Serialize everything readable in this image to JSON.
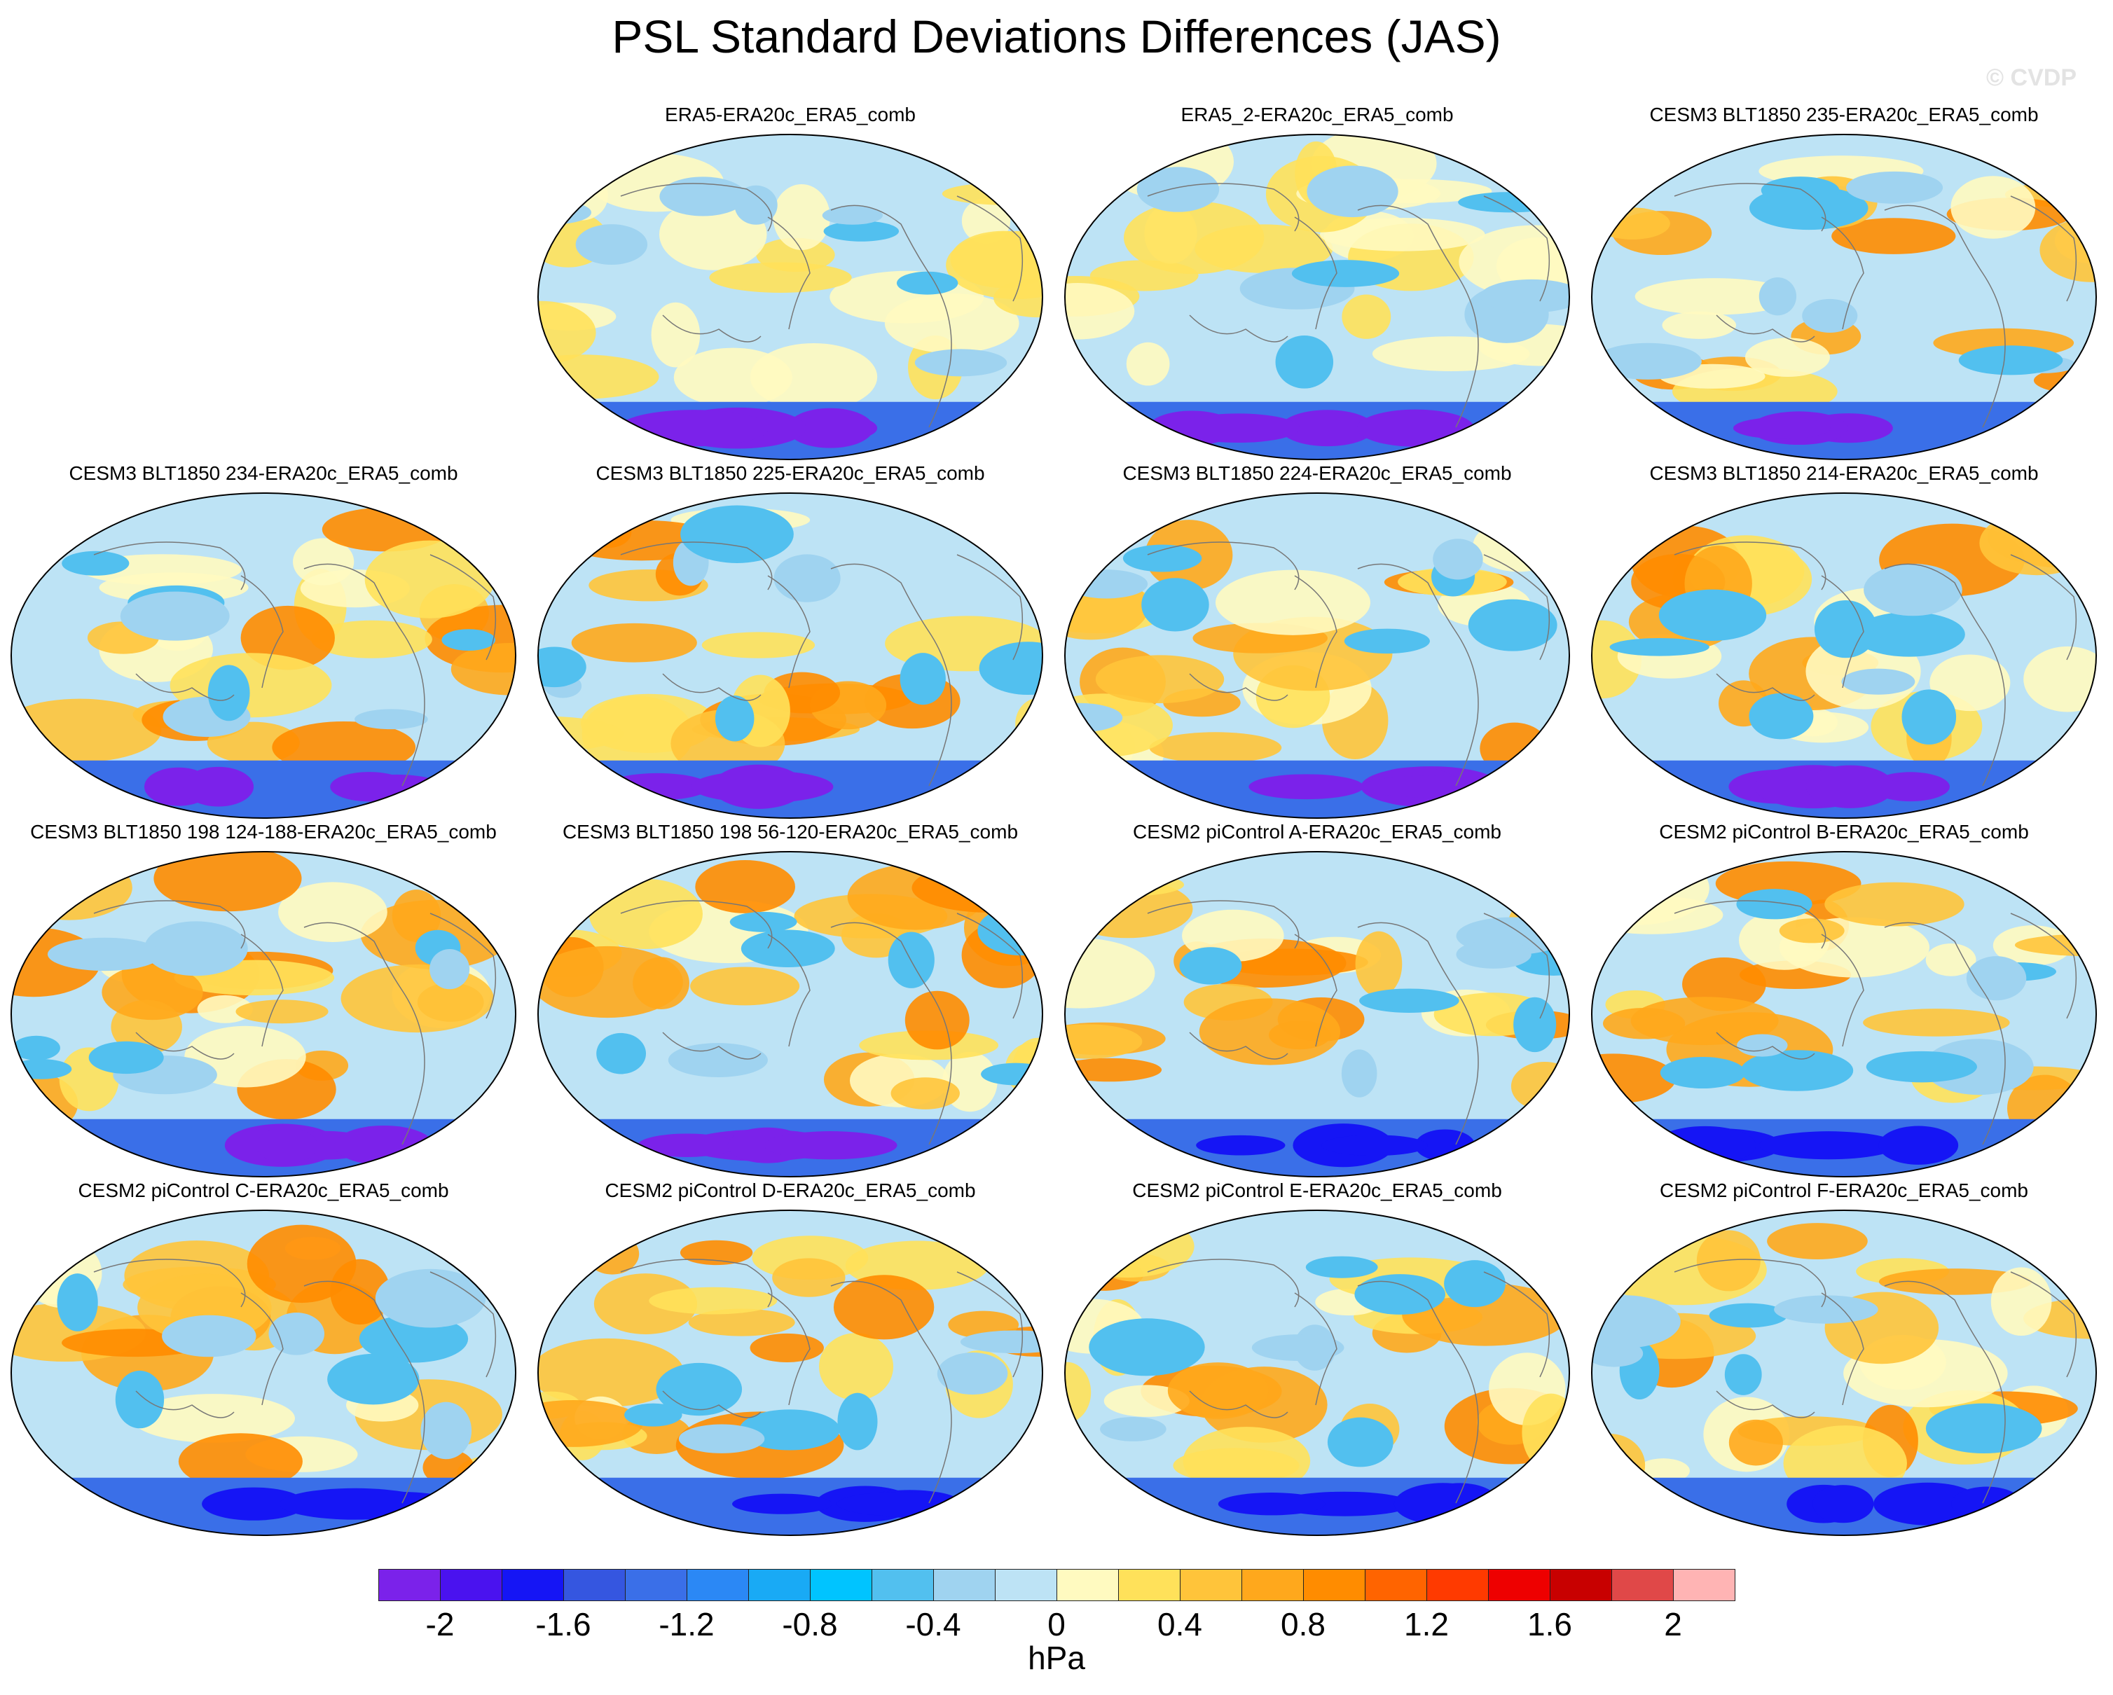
{
  "title": "PSL Standard Deviations Differences (JAS)",
  "watermark": "© CVDP",
  "panels": [
    {
      "label": "ERA5-ERA20c_ERA5_comb",
      "row": 0,
      "col": 1
    },
    {
      "label": "ERA5_2-ERA20c_ERA5_comb",
      "row": 0,
      "col": 2
    },
    {
      "label": "CESM3 BLT1850 235-ERA20c_ERA5_comb",
      "row": 0,
      "col": 3
    },
    {
      "label": "CESM3 BLT1850 234-ERA20c_ERA5_comb",
      "row": 1,
      "col": 0
    },
    {
      "label": "CESM3 BLT1850 225-ERA20c_ERA5_comb",
      "row": 1,
      "col": 1
    },
    {
      "label": "CESM3 BLT1850 224-ERA20c_ERA5_comb",
      "row": 1,
      "col": 2
    },
    {
      "label": "CESM3 BLT1850 214-ERA20c_ERA5_comb",
      "row": 1,
      "col": 3
    },
    {
      "label": "CESM3 BLT1850 198 124-188-ERA20c_ERA5_comb",
      "row": 2,
      "col": 0
    },
    {
      "label": "CESM3 BLT1850 198 56-120-ERA20c_ERA5_comb",
      "row": 2,
      "col": 1
    },
    {
      "label": "CESM2 piControl A-ERA20c_ERA5_comb",
      "row": 2,
      "col": 2
    },
    {
      "label": "CESM2 piControl B-ERA20c_ERA5_comb",
      "row": 2,
      "col": 3
    },
    {
      "label": "CESM2 piControl C-ERA20c_ERA5_comb",
      "row": 3,
      "col": 0
    },
    {
      "label": "CESM2 piControl D-ERA20c_ERA5_comb",
      "row": 3,
      "col": 1
    },
    {
      "label": "CESM2 piControl E-ERA20c_ERA5_comb",
      "row": 3,
      "col": 2
    },
    {
      "label": "CESM2 piControl F-ERA20c_ERA5_comb",
      "row": 3,
      "col": 3
    }
  ],
  "colorbar": {
    "units": "hPa",
    "colors": [
      "#7b22ea",
      "#4a12ef",
      "#1515f5",
      "#3556e0",
      "#3a6fe8",
      "#2b88f5",
      "#19aaf5",
      "#00c4ff",
      "#52c0ef",
      "#9fd3f0",
      "#bde3f5",
      "#fffac0",
      "#ffe15a",
      "#ffc43a",
      "#ffa81c",
      "#ff8c00",
      "#ff6400",
      "#ff3a00",
      "#ee0000",
      "#c80000",
      "#e04848",
      "#ffb4b4"
    ],
    "tick_labels": [
      "-2",
      "-1.6",
      "-1.2",
      "-0.8",
      "-0.4",
      "0",
      "0.4",
      "0.8",
      "1.2",
      "1.6",
      "2"
    ]
  }
}
